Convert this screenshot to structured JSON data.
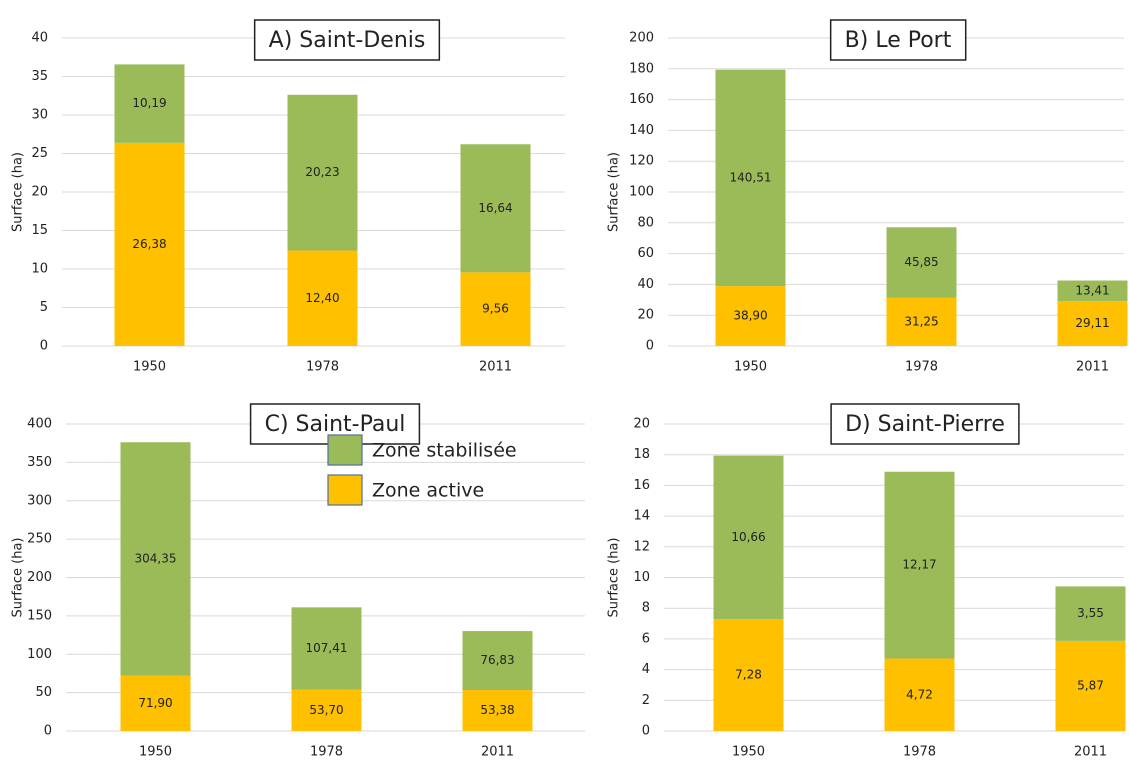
{
  "chart_data": [
    {
      "type": "bar",
      "stacked": true,
      "title": "A) Saint-Denis",
      "ylabel": "Surface (ha)",
      "categories": [
        "1950",
        "1978",
        "2011"
      ],
      "series": [
        {
          "color": "#ffc000",
          "values": [
            26.38,
            12.4,
            9.56
          ],
          "value_labels": [
            "26,38",
            "12,40",
            "9,56"
          ]
        },
        {
          "color": "#9bbb59",
          "values": [
            10.19,
            20.23,
            16.64
          ],
          "value_labels": [
            "10,19",
            "20,23",
            "16,64"
          ]
        }
      ],
      "ylim": [
        0,
        40
      ],
      "yticks": [
        0,
        5,
        10,
        15,
        20,
        25,
        30,
        35,
        40
      ],
      "grid": true
    },
    {
      "type": "bar",
      "stacked": true,
      "title": "B) Le Port",
      "ylabel": "Surface (ha)",
      "categories": [
        "1950",
        "1978",
        "2011"
      ],
      "series": [
        {
          "color": "#ffc000",
          "values": [
            38.9,
            31.25,
            29.11
          ],
          "value_labels": [
            "38,90",
            "31,25",
            "29,11"
          ]
        },
        {
          "color": "#9bbb59",
          "values": [
            140.51,
            45.85,
            13.41
          ],
          "value_labels": [
            "140,51",
            "45,85",
            "13,41"
          ]
        }
      ],
      "ylim": [
        0,
        200
      ],
      "yticks": [
        0,
        20,
        40,
        60,
        80,
        100,
        120,
        140,
        160,
        180,
        200
      ],
      "grid": true
    },
    {
      "type": "bar",
      "stacked": true,
      "title": "C) Saint-Paul",
      "ylabel": "Surface (ha)",
      "categories": [
        "1950",
        "1978",
        "2011"
      ],
      "series": [
        {
          "name": "Zone active",
          "color": "#ffc000",
          "values": [
            71.9,
            53.7,
            53.38
          ],
          "value_labels": [
            "71,90",
            "53,70",
            "53,38"
          ]
        },
        {
          "name": "Zone stabilisée",
          "color": "#9bbb59",
          "values": [
            304.35,
            107.41,
            76.83
          ],
          "value_labels": [
            "304,35",
            "107,41",
            "76,83"
          ]
        }
      ],
      "ylim": [
        0,
        400
      ],
      "yticks": [
        0,
        50,
        100,
        150,
        200,
        250,
        300,
        350,
        400
      ],
      "grid": true,
      "legend": "center"
    },
    {
      "type": "bar",
      "stacked": true,
      "title": "D) Saint-Pierre",
      "ylabel": "Surface (ha)",
      "categories": [
        "1950",
        "1978",
        "2011"
      ],
      "series": [
        {
          "color": "#ffc000",
          "values": [
            7.28,
            4.72,
            5.87
          ],
          "value_labels": [
            "7,28",
            "4,72",
            "5,87"
          ]
        },
        {
          "color": "#9bbb59",
          "values": [
            10.66,
            12.17,
            3.55
          ],
          "value_labels": [
            "10,66",
            "12,17",
            "3,55"
          ]
        }
      ],
      "ylim": [
        0,
        20
      ],
      "yticks": [
        0,
        2,
        4,
        6,
        8,
        10,
        12,
        14,
        16,
        18,
        20
      ],
      "grid": true
    }
  ]
}
